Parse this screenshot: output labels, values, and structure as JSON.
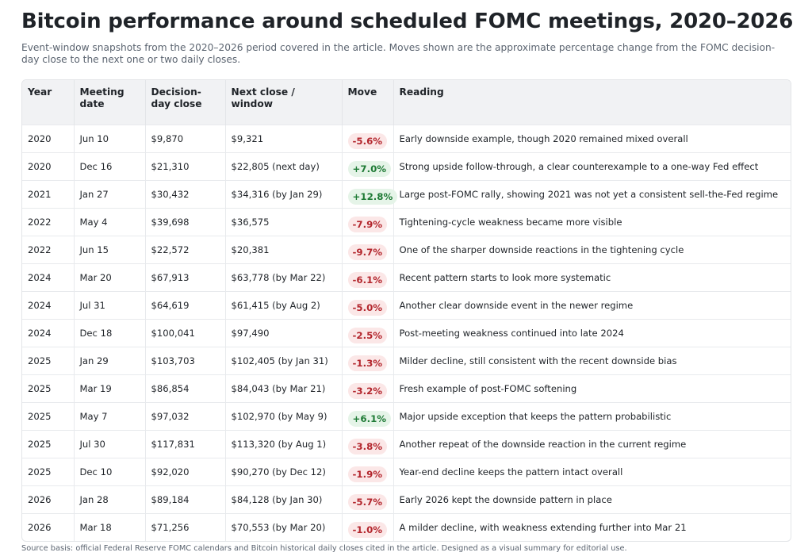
{
  "header": {
    "title": "Bitcoin performance around scheduled FOMC meetings, 2020–2026",
    "subtitle": "Event-window snapshots from the 2020–2026 period covered in the article. Moves shown are the approximate percentage change from the FOMC decision-day close to the next one or two daily closes."
  },
  "table": {
    "columns": [
      "Year",
      "Meeting date",
      "Decision-day close",
      "Next close / window",
      "Move",
      "Reading"
    ],
    "rows": [
      [
        "2020",
        "Jun 10",
        "$9,870",
        "$9,321",
        "-5.6%",
        "Early downside example, though 2020 remained mixed overall"
      ],
      [
        "2020",
        "Dec 16",
        "$21,310",
        "$22,805 (next day)",
        "+7.0%",
        "Strong upside follow-through, a clear counterexample to a one-way Fed effect"
      ],
      [
        "2021",
        "Jan 27",
        "$30,432",
        "$34,316 (by Jan 29)",
        "+12.8%",
        "Large post-FOMC rally, showing 2021 was not yet a consistent sell-the-Fed regime"
      ],
      [
        "2022",
        "May 4",
        "$39,698",
        "$36,575",
        "-7.9%",
        "Tightening-cycle weakness became more visible"
      ],
      [
        "2022",
        "Jun 15",
        "$22,572",
        "$20,381",
        "-9.7%",
        "One of the sharper downside reactions in the tightening cycle"
      ],
      [
        "2024",
        "Mar 20",
        "$67,913",
        "$63,778 (by Mar 22)",
        "-6.1%",
        "Recent pattern starts to look more systematic"
      ],
      [
        "2024",
        "Jul 31",
        "$64,619",
        "$61,415 (by Aug 2)",
        "-5.0%",
        "Another clear downside event in the newer regime"
      ],
      [
        "2024",
        "Dec 18",
        "$100,041",
        "$97,490",
        "-2.5%",
        "Post-meeting weakness continued into late 2024"
      ],
      [
        "2025",
        "Jan 29",
        "$103,703",
        "$102,405 (by Jan 31)",
        "-1.3%",
        "Milder decline, still consistent with the recent downside bias"
      ],
      [
        "2025",
        "Mar 19",
        "$86,854",
        "$84,043 (by Mar 21)",
        "-3.2%",
        "Fresh example of post-FOMC softening"
      ],
      [
        "2025",
        "May 7",
        "$97,032",
        "$102,970 (by May 9)",
        "+6.1%",
        "Major upside exception that keeps the pattern probabilistic"
      ],
      [
        "2025",
        "Jul 30",
        "$117,831",
        "$113,320 (by Aug 1)",
        "-3.8%",
        "Another repeat of the downside reaction in the current regime"
      ],
      [
        "2025",
        "Dec 10",
        "$92,020",
        "$90,270 (by Dec 12)",
        "-1.9%",
        "Year-end decline keeps the pattern intact overall"
      ],
      [
        "2026",
        "Jan 28",
        "$89,184",
        "$84,128 (by Jan 30)",
        "-5.7%",
        "Early 2026 kept the downside pattern in place"
      ],
      [
        "2026",
        "Mar 18",
        "$71,256",
        "$70,553 (by Mar 20)",
        "-1.0%",
        "A milder decline, with weakness extending further into Mar 21"
      ]
    ]
  },
  "footer": "Source basis: official Federal Reserve FOMC calendars and Bitcoin historical daily closes cited in the article. Designed as a visual summary for editorial use."
}
